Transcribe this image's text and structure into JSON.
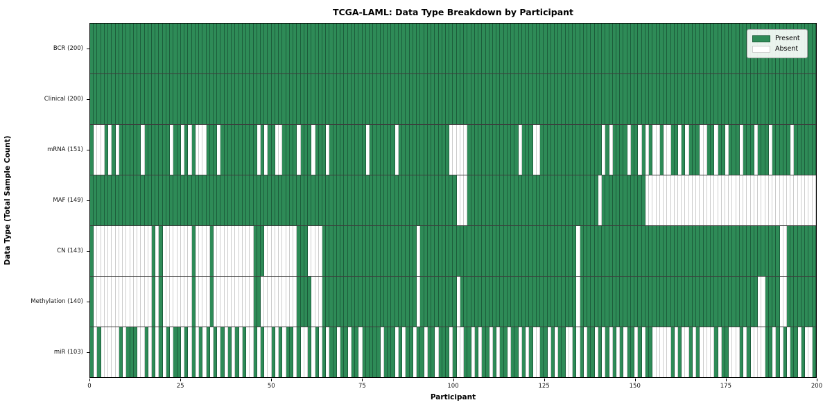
{
  "title": "TCGA-LAML: Data Type Breakdown by Participant",
  "axes": {
    "xlabel": "Participant",
    "ylabel": "Data Type (Total Sample Count)",
    "x_ticks": [
      "0",
      "25",
      "50",
      "75",
      "100",
      "125",
      "150",
      "175",
      "200"
    ]
  },
  "legend": {
    "present_label": "Present",
    "absent_label": "Absent"
  },
  "colors": {
    "present": "#2e8b57",
    "present_edge": "#1c5d3b",
    "absent": "#ffffff",
    "absent_edge": "#cccccc",
    "row_divider": "#3c3c3c",
    "spine": "#000000"
  },
  "chart_data": {
    "type": "heatmap",
    "title": "TCGA-LAML: Data Type Breakdown by Participant",
    "xlabel": "Participant",
    "ylabel": "Data Type (Total Sample Count)",
    "x_range": [
      0,
      200
    ],
    "n_participants": 200,
    "legend_position": "upper right",
    "value_meaning": {
      "present": "Present (green)",
      "absent": "Absent (white)"
    },
    "rows": [
      {
        "label": "BCR (200)",
        "data_type": "BCR",
        "present_count": 200,
        "absent_participants": []
      },
      {
        "label": "Clinical (200)",
        "data_type": "Clinical",
        "present_count": 200,
        "absent_participants": []
      },
      {
        "label": "mRNA (151)",
        "data_type": "mRNA",
        "present_count": 151,
        "absent_participants": [
          1,
          2,
          3,
          5,
          7,
          14,
          22,
          25,
          27,
          29,
          30,
          31,
          35,
          46,
          48,
          51,
          52,
          57,
          61,
          65,
          76,
          84,
          99,
          100,
          101,
          102,
          103,
          118,
          122,
          123,
          141,
          143,
          148,
          151,
          153,
          155,
          156,
          158,
          159,
          162,
          164,
          168,
          169,
          172,
          175,
          179,
          183,
          187,
          193
        ]
      },
      {
        "label": "MAF (149)",
        "data_type": "MAF",
        "present_count": 149,
        "absent_participants": [
          101,
          102,
          103,
          140,
          153,
          154,
          155,
          156,
          157,
          158,
          159,
          160,
          161,
          162,
          163,
          164,
          165,
          166,
          167,
          168,
          169,
          170,
          171,
          172,
          173,
          174,
          175,
          176,
          177,
          178,
          179,
          180,
          181,
          182,
          183,
          184,
          185,
          186,
          187,
          188,
          189,
          190,
          191,
          192,
          193,
          194,
          195,
          196,
          197,
          198,
          199
        ]
      },
      {
        "label": "CN (143)",
        "data_type": "CN",
        "present_count": 143,
        "absent_participants": [
          1,
          2,
          3,
          4,
          5,
          6,
          7,
          8,
          9,
          10,
          11,
          12,
          13,
          14,
          15,
          16,
          18,
          20,
          21,
          22,
          23,
          24,
          25,
          26,
          27,
          29,
          30,
          31,
          32,
          34,
          35,
          36,
          37,
          38,
          39,
          40,
          41,
          42,
          43,
          44,
          48,
          49,
          50,
          51,
          52,
          53,
          54,
          55,
          56,
          60,
          61,
          62,
          63,
          90,
          134,
          190,
          191
        ]
      },
      {
        "label": "Methylation (140)",
        "data_type": "Methylation",
        "present_count": 140,
        "absent_participants": [
          1,
          2,
          3,
          4,
          5,
          6,
          7,
          8,
          9,
          10,
          11,
          12,
          13,
          14,
          15,
          16,
          18,
          20,
          21,
          22,
          23,
          24,
          25,
          26,
          27,
          29,
          30,
          31,
          32,
          34,
          35,
          36,
          37,
          38,
          39,
          40,
          41,
          42,
          43,
          44,
          47,
          48,
          49,
          50,
          51,
          52,
          53,
          54,
          55,
          56,
          61,
          62,
          63,
          90,
          101,
          134,
          184,
          185,
          190,
          191
        ]
      },
      {
        "label": "miR (103)",
        "data_type": "miR",
        "present_count": 103,
        "absent_participants": [
          1,
          3,
          4,
          5,
          6,
          7,
          9,
          13,
          14,
          16,
          18,
          20,
          22,
          25,
          27,
          29,
          31,
          33,
          35,
          37,
          39,
          41,
          43,
          44,
          46,
          48,
          49,
          51,
          53,
          56,
          58,
          59,
          61,
          63,
          65,
          68,
          71,
          74,
          80,
          84,
          86,
          89,
          92,
          95,
          99,
          101,
          102,
          105,
          107,
          110,
          112,
          115,
          118,
          120,
          122,
          123,
          126,
          128,
          131,
          132,
          134,
          136,
          139,
          141,
          143,
          145,
          147,
          150,
          152,
          155,
          156,
          157,
          158,
          159,
          161,
          163,
          164,
          166,
          168,
          169,
          170,
          171,
          173,
          176,
          177,
          178,
          180,
          182,
          183,
          184,
          185,
          188,
          190,
          192,
          195,
          197,
          198
        ]
      }
    ]
  }
}
